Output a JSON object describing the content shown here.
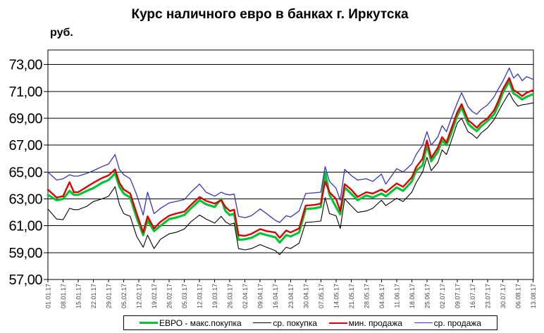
{
  "chart_data": {
    "type": "line",
    "title": "Курс наличного евро в банках г. Иркутска",
    "unit_label": "руб.",
    "ylabel": "руб.",
    "ylim": [
      57,
      74.1
    ],
    "grid": "horizontal",
    "legend_position": "bottom",
    "y_tick_values": [
      73,
      71,
      69,
      67,
      65,
      63,
      61,
      59,
      57
    ],
    "y_tick_labels": [
      "73,00",
      "71,00",
      "69,00",
      "67,00",
      "65,00",
      "63,00",
      "61,00",
      "59,00",
      "57,00"
    ],
    "x_tick_days": [
      0,
      7,
      14,
      21,
      28,
      35,
      42,
      49,
      56,
      63,
      70,
      77,
      84,
      91,
      98,
      105,
      112,
      119,
      126,
      133,
      140,
      147,
      154,
      161,
      168,
      175,
      182,
      189,
      196,
      203,
      210,
      217,
      224
    ],
    "x_tick_labels": [
      "01.01.17",
      "08.01.17",
      "15.01.17",
      "22.01.17",
      "29.01.17",
      "05.02.17",
      "12.02.17",
      "19.02.17",
      "26.02.17",
      "05.03.17",
      "12.03.17",
      "19.03.17",
      "26.03.17",
      "02.04.17",
      "09.04.17",
      "16.04.17",
      "23.04.17",
      "30.04.17",
      "07.05.17",
      "14.05.17",
      "21.05.17",
      "28.05.17",
      "04.06.17",
      "11.06.17",
      "18.06.17",
      "25.06.17",
      "02.07.17",
      "09.07.17",
      "16.07.17",
      "23.07.17",
      "30.07.17",
      "06.08.17",
      "13.08.17"
    ],
    "days": [
      0,
      4,
      7,
      10,
      12,
      14,
      18,
      21,
      25,
      28,
      31,
      33,
      35,
      38,
      41,
      44,
      46,
      49,
      52,
      56,
      59,
      63,
      66,
      70,
      73,
      77,
      80,
      82,
      84,
      86,
      88,
      91,
      94,
      98,
      101,
      105,
      107,
      110,
      112,
      116,
      119,
      123,
      126,
      128,
      130,
      133,
      135,
      137,
      140,
      143,
      147,
      150,
      154,
      156,
      161,
      164,
      168,
      170,
      173,
      175,
      177,
      180,
      182,
      184,
      186,
      189,
      191,
      194,
      196,
      198,
      200,
      203,
      206,
      208,
      210,
      213,
      215,
      217,
      219,
      221,
      224
    ],
    "series": [
      {
        "name": "ЕВРО - макс.покупка",
        "color": "#00c832",
        "width": 3.2,
        "values": [
          63.3,
          62.9,
          63.0,
          63.6,
          63.3,
          63.3,
          63.6,
          63.8,
          64.2,
          64.4,
          64.9,
          63.9,
          63.4,
          63.1,
          61.6,
          60.3,
          61.4,
          60.6,
          61.0,
          61.5,
          61.6,
          61.8,
          62.3,
          62.9,
          62.6,
          62.4,
          63.0,
          62.1,
          61.8,
          61.9,
          59.95,
          60.0,
          60.1,
          60.45,
          60.3,
          60.15,
          59.75,
          60.3,
          60.2,
          60.5,
          62.25,
          62.3,
          62.4,
          65.0,
          63.3,
          62.4,
          61.85,
          63.85,
          63.4,
          62.9,
          63.25,
          63.1,
          63.4,
          63.2,
          63.85,
          63.6,
          64.3,
          65.1,
          65.5,
          67.0,
          65.8,
          66.5,
          67.35,
          67.0,
          67.8,
          69.2,
          69.8,
          68.6,
          68.3,
          68.05,
          68.4,
          68.8,
          69.3,
          70.0,
          70.9,
          71.75,
          70.85,
          70.65,
          70.4,
          70.6,
          70.8
        ]
      },
      {
        "name": "ср. покупка",
        "color": "#000000",
        "width": 1.1,
        "values": [
          62.25,
          61.5,
          61.45,
          62.3,
          62.2,
          62.2,
          62.45,
          62.8,
          63.0,
          63.2,
          63.9,
          62.6,
          61.9,
          61.7,
          60.2,
          59.4,
          60.3,
          59.3,
          60.0,
          60.4,
          60.5,
          60.75,
          61.3,
          61.8,
          61.5,
          61.2,
          61.7,
          61.3,
          61.1,
          61.2,
          59.3,
          59.2,
          59.3,
          59.6,
          59.4,
          59.15,
          58.85,
          59.4,
          59.3,
          59.7,
          61.25,
          61.3,
          61.35,
          63.1,
          61.9,
          61.75,
          60.8,
          63.0,
          62.5,
          62.0,
          62.1,
          62.3,
          62.9,
          62.5,
          63.05,
          62.8,
          63.5,
          64.2,
          65.0,
          66.1,
          65.1,
          65.7,
          66.65,
          66.3,
          67.2,
          68.65,
          69.0,
          68.0,
          67.8,
          67.5,
          67.9,
          68.3,
          68.9,
          69.5,
          70.1,
          70.9,
          70.3,
          69.9,
          70.0,
          70.05,
          70.15
        ]
      },
      {
        "name": "мин. продажа",
        "color": "#e00000",
        "width": 2.4,
        "values": [
          63.7,
          63.1,
          63.2,
          64.25,
          63.5,
          63.5,
          63.9,
          64.2,
          64.55,
          64.75,
          65.2,
          64.2,
          63.7,
          63.4,
          61.9,
          60.5,
          61.7,
          60.8,
          61.3,
          61.75,
          61.9,
          62.05,
          62.55,
          63.15,
          62.85,
          62.65,
          62.9,
          62.4,
          62.1,
          62.2,
          60.3,
          60.25,
          60.4,
          60.75,
          60.6,
          60.5,
          60.1,
          60.65,
          60.5,
          60.8,
          62.5,
          62.55,
          62.65,
          64.3,
          63.5,
          63.0,
          62.1,
          64.1,
          63.7,
          63.15,
          63.5,
          63.4,
          63.7,
          63.5,
          64.15,
          63.9,
          64.6,
          65.35,
          66.0,
          67.35,
          66.05,
          66.8,
          67.6,
          67.2,
          68.1,
          69.45,
          70.05,
          68.85,
          68.6,
          68.3,
          68.65,
          69.0,
          69.6,
          70.3,
          71.15,
          72.0,
          71.1,
          70.9,
          70.65,
          70.9,
          71.1
        ]
      },
      {
        "name": "ср. продажа",
        "color": "#3333cc",
        "width": 1.3,
        "values": [
          65.0,
          64.4,
          64.5,
          64.8,
          64.7,
          64.7,
          64.9,
          65.1,
          65.4,
          65.6,
          66.3,
          65.2,
          64.8,
          64.5,
          63.3,
          61.8,
          63.5,
          61.9,
          62.3,
          62.7,
          62.8,
          62.95,
          63.5,
          64.1,
          63.5,
          63.2,
          63.5,
          63.35,
          63.3,
          63.35,
          61.7,
          61.6,
          61.75,
          62.25,
          61.9,
          61.4,
          61.25,
          61.75,
          61.65,
          62.1,
          63.4,
          63.45,
          63.5,
          65.4,
          64.3,
          63.8,
          62.9,
          65.2,
          64.75,
          64.4,
          64.5,
          64.3,
          64.85,
          64.1,
          65.25,
          65.0,
          65.6,
          66.3,
          67.0,
          68.0,
          67.0,
          67.6,
          68.45,
          68.0,
          68.9,
          70.15,
          70.9,
          69.85,
          69.5,
          69.3,
          69.65,
          70.0,
          70.6,
          71.2,
          71.75,
          72.75,
          72.0,
          72.3,
          71.8,
          72.1,
          71.9
        ]
      }
    ]
  }
}
